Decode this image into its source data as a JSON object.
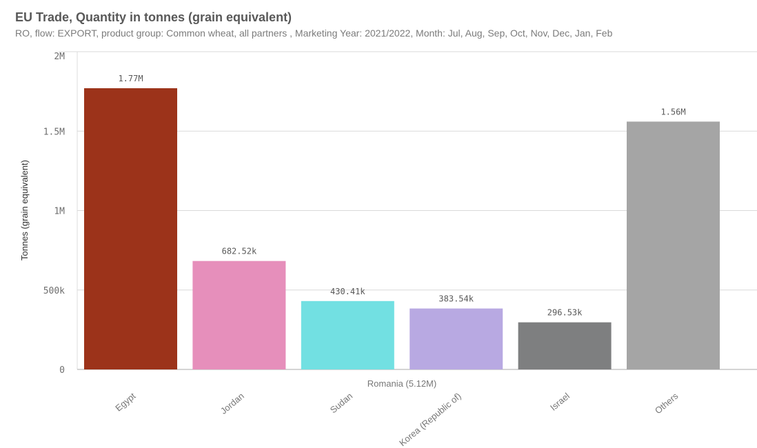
{
  "chart_data": {
    "type": "bar",
    "title": "EU Trade, Quantity in tonnes (grain equivalent)",
    "subtitle": "RO, flow: EXPORT, product group: Common wheat, all partners , Marketing Year: 2021/2022, Month: Jul, Aug, Sep, Oct, Nov, Dec, Jan, Feb",
    "xlabel": "Romania (5.12M)",
    "ylabel": "Tonnes (grain equivalent)",
    "ylim": [
      0,
      2000000
    ],
    "yticks": [
      {
        "v": 0,
        "label": "0"
      },
      {
        "v": 500000,
        "label": "500k"
      },
      {
        "v": 1000000,
        "label": "1M"
      },
      {
        "v": 1500000,
        "label": "1.5M"
      },
      {
        "v": 2000000,
        "label": "2M"
      }
    ],
    "grid": true,
    "categories": [
      "Egypt",
      "Jordan",
      "Sudan",
      "Korea (Republic of)",
      "Israel",
      "Others"
    ],
    "values": [
      1770000,
      682520,
      430410,
      383540,
      296530,
      1560000
    ],
    "data_labels": [
      "1.77M",
      "682.52k",
      "430.41k",
      "383.54k",
      "296.53k",
      "1.56M"
    ],
    "colors": [
      "#9c331a",
      "#e68fbb",
      "#72e0e2",
      "#b8a9e2",
      "#7e7f80",
      "#a5a5a5"
    ]
  }
}
